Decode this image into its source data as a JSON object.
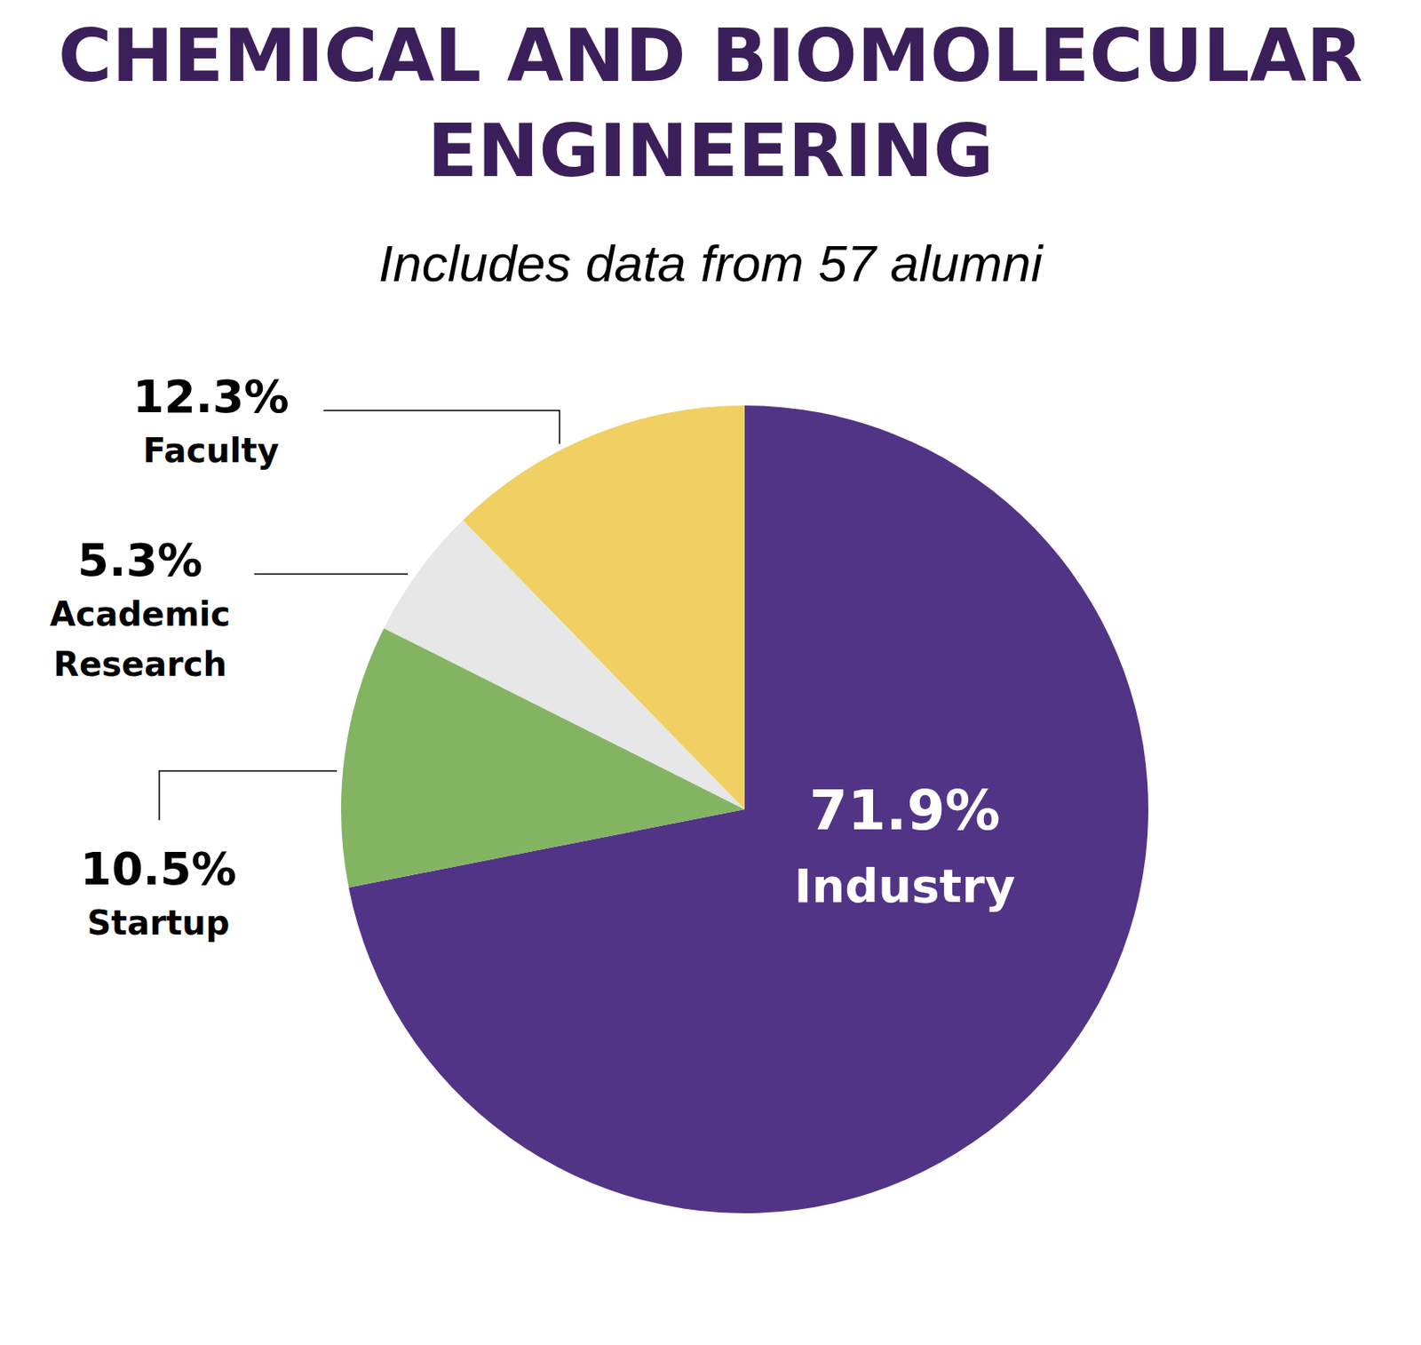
{
  "chart_data": {
    "type": "pie",
    "title": "CHEMICAL AND BIOMOLECULAR ENGINEERING",
    "subtitle": "Includes data from 57 alumni",
    "categories": [
      "Industry",
      "Startup",
      "Academic Research",
      "Faculty"
    ],
    "values": [
      71.9,
      10.5,
      5.3,
      12.3
    ],
    "value_labels": [
      "71.9%",
      "10.5%",
      "5.3%",
      "12.3%"
    ],
    "colors": [
      "#523487",
      "#83b462",
      "#e6e7e6",
      "#f0d063"
    ],
    "data_labels": true
  }
}
